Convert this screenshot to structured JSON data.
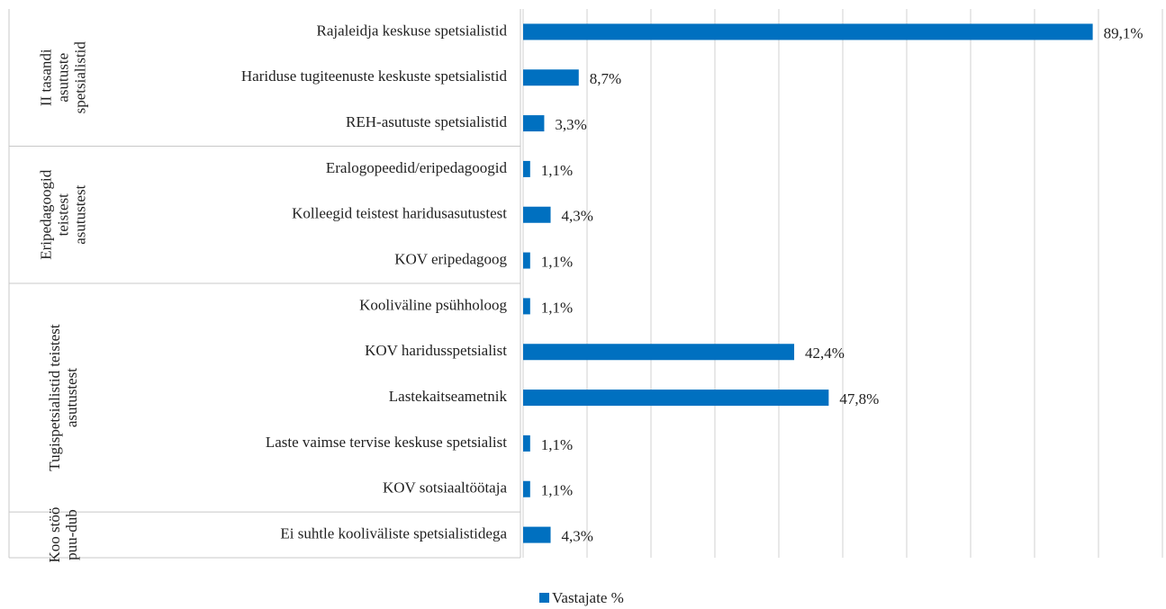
{
  "chart_data": {
    "type": "bar",
    "orientation": "horizontal",
    "groups": [
      {
        "label": [
          "II tasandi",
          "asutuste",
          "spetsialistid"
        ],
        "categories": [
          "Rajaleidja keskuse spetsialistid",
          "Hariduse tugiteenuste keskuste spetsialistid",
          "REH-asutuste spetsialistid"
        ]
      },
      {
        "label": [
          "Eripedagoogid",
          "teistest",
          "asutustest"
        ],
        "categories": [
          "Eralogopeedid/eripedagoogid",
          "Kolleegid teistest haridusasutustest",
          "KOV eripedagoog"
        ]
      },
      {
        "label": [
          "Tugispetsialistid teistest",
          "asutustest"
        ],
        "categories": [
          "Kooliväline psühholoog",
          "KOV haridusspetsialist",
          "Lastekaitseametnik",
          "Laste vaimse tervise keskuse spetsialist",
          "KOV sotsiaaltöötaja"
        ]
      },
      {
        "label": [
          "Koo stöö",
          "puu-dub"
        ],
        "categories": [
          "Ei suhtle kooliväliste spetsialistidega"
        ]
      }
    ],
    "series": [
      {
        "name": "Vastajate %",
        "color": "#0070c0",
        "values": [
          89.1,
          8.7,
          3.3,
          1.1,
          4.3,
          1.1,
          1.1,
          42.4,
          47.8,
          1.1,
          1.1,
          4.3
        ],
        "value_labels": [
          "89,1%",
          "8,7%",
          "3,3%",
          "1,1%",
          "4,3%",
          "1,1%",
          "1,1%",
          "42,4%",
          "47,8%",
          "1,1%",
          "1,1%",
          "4,3%"
        ]
      }
    ],
    "xlim": [
      0,
      100
    ],
    "xticks": [
      0,
      10,
      20,
      30,
      40,
      50,
      60,
      70,
      80,
      90,
      100
    ],
    "grid": true,
    "legend": "bottom"
  }
}
